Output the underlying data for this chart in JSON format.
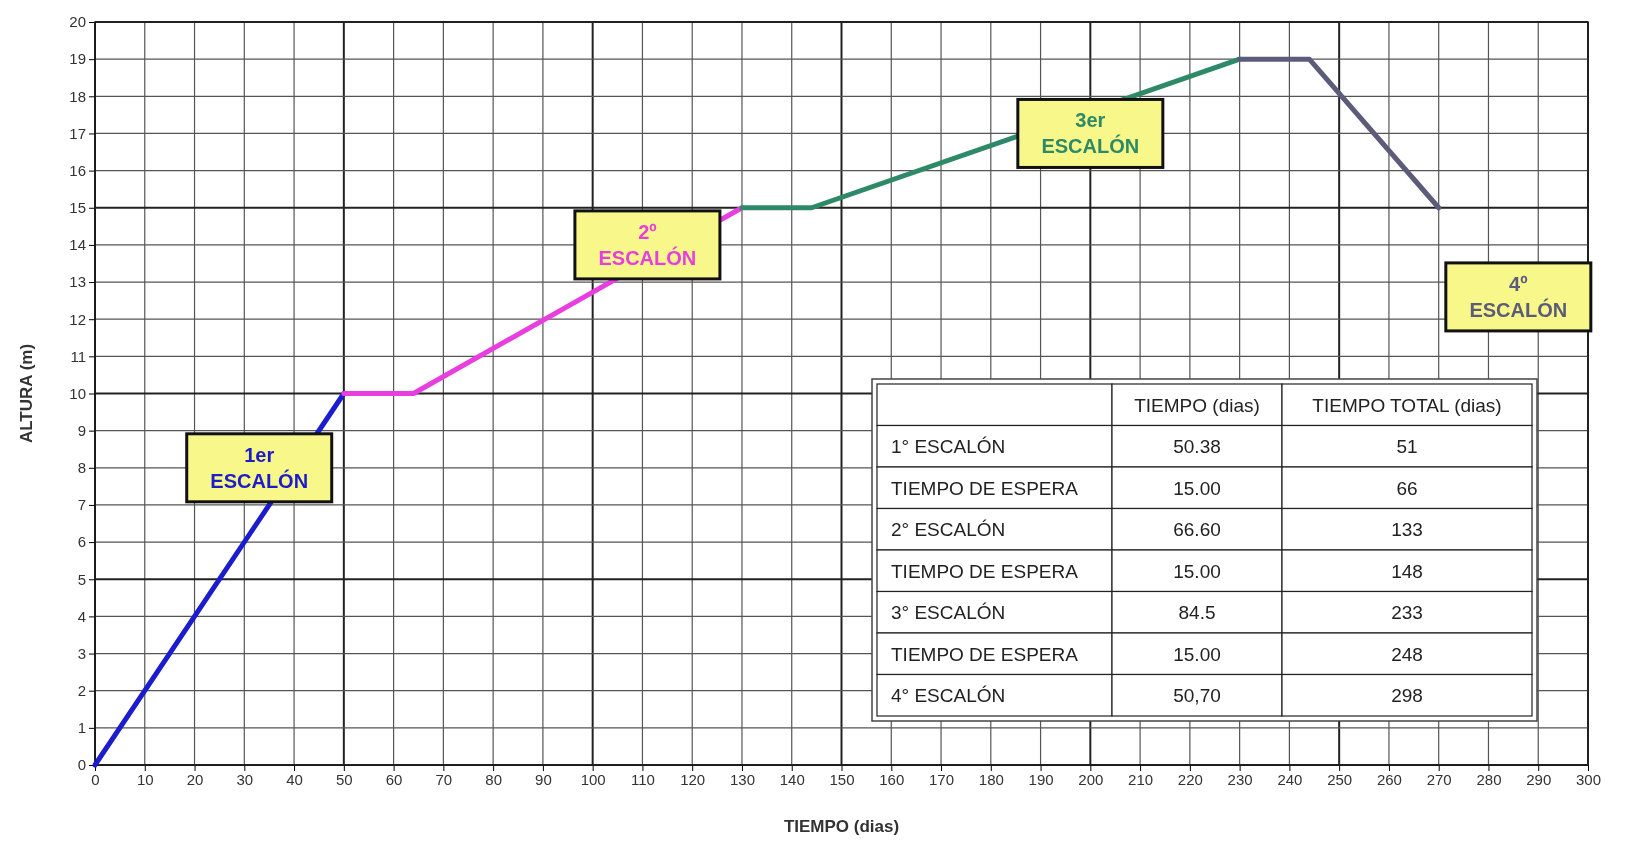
{
  "chart_data": {
    "type": "line",
    "xlabel": "TIEMPO (dias)",
    "ylabel": "ALTURA (m)",
    "xlim": [
      0,
      300
    ],
    "xticks": [
      0,
      10,
      20,
      30,
      40,
      50,
      60,
      70,
      80,
      90,
      100,
      110,
      120,
      130,
      140,
      150,
      160,
      170,
      180,
      190,
      200,
      210,
      220,
      230,
      240,
      250,
      260,
      270,
      280,
      290,
      300
    ],
    "ylim": [
      0,
      20
    ],
    "yticks": [
      0,
      1,
      2,
      3,
      4,
      5,
      6,
      7,
      8,
      9,
      10,
      11,
      12,
      13,
      14,
      15,
      16,
      17,
      18,
      19,
      20
    ],
    "grid": true,
    "marker": "none",
    "line_style": "solid",
    "series": [
      {
        "name": "1er ESCALÓN",
        "color": "#1c1ccc",
        "x": [
          0,
          50
        ],
        "values": [
          0,
          10
        ]
      },
      {
        "name": "2º ESCALÓN",
        "color": "#e83ee0",
        "x": [
          50,
          64,
          130
        ],
        "values": [
          10,
          10,
          15
        ]
      },
      {
        "name": "3er ESCALÓN",
        "color": "#2e8a66",
        "x": [
          130,
          144,
          230
        ],
        "values": [
          15,
          15,
          19
        ]
      },
      {
        "name": "4º ESCALÓN",
        "color": "#5c5c7a",
        "x": [
          230,
          244,
          270
        ],
        "values": [
          19,
          19,
          15
        ]
      }
    ],
    "annotations": [
      "TIEMPO (dias)",
      "TIEMPO TOTAL (dias)",
      "1° ESCALÓN",
      "50.38",
      "51",
      "TIEMPO DE ESPERA",
      "15.00",
      "66",
      "2° ESCALÓN",
      "66.60",
      "133",
      "TIEMPO DE ESPERA",
      "15.00",
      "148",
      "3° ESCALÓN",
      "84.5",
      "233",
      "TIEMPO DE ESPERA",
      "15.00",
      "248",
      "4° ESCALÓN",
      "50,70",
      "298"
    ]
  }
}
